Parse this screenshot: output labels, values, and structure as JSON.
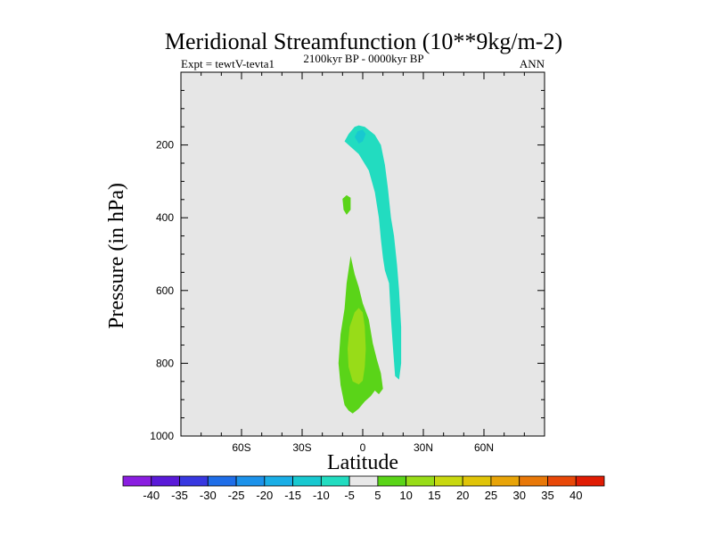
{
  "chart_data": {
    "type": "contour",
    "title": "Meridional Streamfunction (10**9kg/m-2)",
    "subtitle": "2100kyr BP - 0000kyr BP",
    "left_label": "Expt = tewtV-tevta1",
    "right_label": "ANN",
    "xlabel": "Latitude",
    "ylabel": "Pressure (in hPa)",
    "xlim": [
      -90,
      90
    ],
    "ylim": [
      1000,
      0
    ],
    "x_ticks": [
      {
        "value": -60,
        "label": "60S"
      },
      {
        "value": -30,
        "label": "30S"
      },
      {
        "value": 0,
        "label": "0"
      },
      {
        "value": 30,
        "label": "30N"
      },
      {
        "value": 60,
        "label": "60N"
      }
    ],
    "y_ticks": [
      {
        "value": 200,
        "label": "200"
      },
      {
        "value": 400,
        "label": "400"
      },
      {
        "value": 600,
        "label": "600"
      },
      {
        "value": 800,
        "label": "800"
      },
      {
        "value": 1000,
        "label": "1000"
      }
    ],
    "background_color": "#e6e6e6",
    "colorbar": {
      "labels": [
        "-40",
        "-35",
        "-30",
        "-25",
        "-20",
        "-15",
        "-10",
        "-5",
        "5",
        "10",
        "15",
        "20",
        "25",
        "30",
        "35",
        "40"
      ],
      "colors": [
        "#8a1ee0",
        "#5a1ad8",
        "#3838e0",
        "#1f6ee8",
        "#1c92ea",
        "#1aaee6",
        "#18c8d0",
        "#22dcc0",
        "#e8e8e8",
        "#5ad418",
        "#98dc18",
        "#c8d810",
        "#e0c408",
        "#e8a408",
        "#e87808",
        "#e84808",
        "#e01c04"
      ]
    },
    "regions": [
      {
        "name": "upper-negative-cell",
        "level": "-10 to -5",
        "color": "#22dcc0",
        "points": [
          [
            -9,
            190
          ],
          [
            -7,
            170
          ],
          [
            -4,
            150
          ],
          [
            -2,
            146
          ],
          [
            1,
            150
          ],
          [
            6,
            172
          ],
          [
            9,
            200
          ],
          [
            11,
            255
          ],
          [
            12.5,
            320
          ],
          [
            14,
            400
          ],
          [
            15.5,
            450
          ],
          [
            17,
            530
          ],
          [
            18,
            600
          ],
          [
            19,
            700
          ],
          [
            19,
            800
          ],
          [
            18,
            845
          ],
          [
            16,
            835
          ],
          [
            15,
            760
          ],
          [
            14,
            680
          ],
          [
            13,
            580
          ],
          [
            11,
            545
          ],
          [
            10,
            510
          ],
          [
            9,
            460
          ],
          [
            8,
            400
          ],
          [
            6,
            330
          ],
          [
            3,
            270
          ],
          [
            -2,
            225
          ],
          [
            -6,
            205
          ]
        ]
      },
      {
        "name": "upper-negative-core",
        "level": "-15 to -10",
        "color": "#18c8d0",
        "points": [
          [
            -4,
            178
          ],
          [
            -2.5,
            162
          ],
          [
            0,
            158
          ],
          [
            1.5,
            170
          ],
          [
            0,
            190
          ],
          [
            -2,
            196
          ]
        ]
      },
      {
        "name": "lower-positive-cell",
        "level": "5 to 10",
        "color": "#5ad418",
        "points": [
          [
            -6,
            505
          ],
          [
            -4,
            555
          ],
          [
            -2,
            590
          ],
          [
            0,
            635
          ],
          [
            3,
            680
          ],
          [
            5,
            745
          ],
          [
            7,
            790
          ],
          [
            9,
            828
          ],
          [
            10,
            870
          ],
          [
            8,
            885
          ],
          [
            6,
            875
          ],
          [
            4,
            890
          ],
          [
            1,
            905
          ],
          [
            -2,
            925
          ],
          [
            -5,
            938
          ],
          [
            -7,
            930
          ],
          [
            -9,
            915
          ],
          [
            -11,
            860
          ],
          [
            -12,
            800
          ],
          [
            -11,
            720
          ],
          [
            -9,
            650
          ],
          [
            -8,
            580
          ]
        ]
      },
      {
        "name": "lower-positive-core",
        "level": "10 to 15",
        "color": "#98dc18",
        "points": [
          [
            -4,
            660
          ],
          [
            -2,
            648
          ],
          [
            0,
            660
          ],
          [
            1,
            700
          ],
          [
            1.5,
            760
          ],
          [
            1,
            810
          ],
          [
            0,
            848
          ],
          [
            -2,
            858
          ],
          [
            -5,
            850
          ],
          [
            -7,
            810
          ],
          [
            -7.5,
            760
          ],
          [
            -6.5,
            700
          ]
        ]
      },
      {
        "name": "small-positive-blob",
        "level": "5 to 10",
        "color": "#5ad418",
        "points": [
          [
            -10,
            348
          ],
          [
            -8,
            338
          ],
          [
            -6,
            345
          ],
          [
            -6,
            378
          ],
          [
            -8,
            392
          ],
          [
            -9.5,
            378
          ]
        ]
      }
    ]
  }
}
